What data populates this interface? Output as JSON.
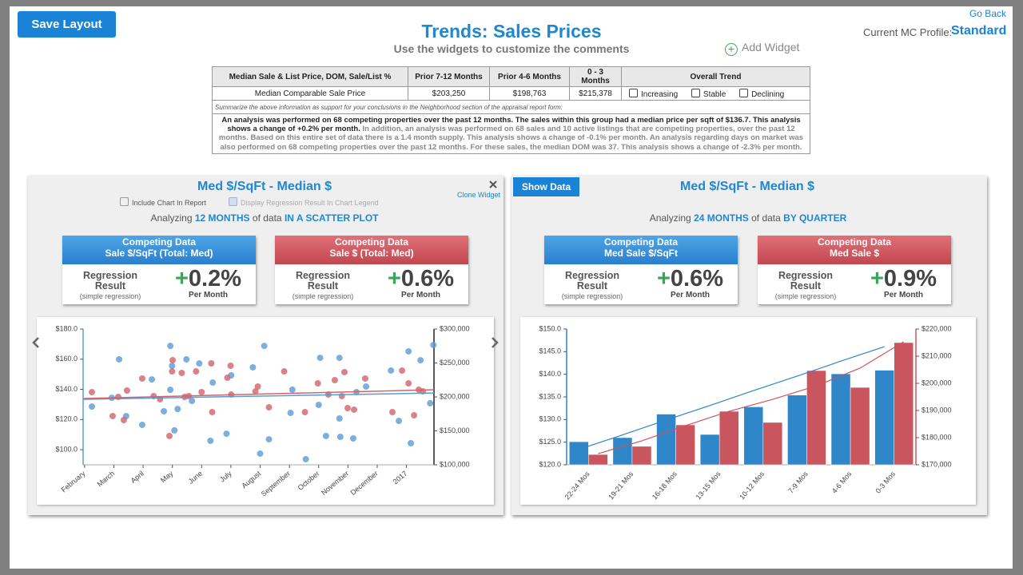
{
  "header": {
    "save_button": "Save Layout",
    "title": "Trends: Sales Prices",
    "subtitle": "Use the widgets to customize the comments",
    "add_widget": "Add Widget",
    "go_back": "Go Back",
    "profile_label": "Current MC Profile:",
    "profile_value": "Standard"
  },
  "table": {
    "headers": [
      "Median Sale & List Price, DOM, Sale/List %",
      "Prior 7-12 Months",
      "Prior 4-6 Months",
      "0 - 3 Months",
      "Overall Trend"
    ],
    "row": [
      "Median Comparable Sale Price",
      "$203,250",
      "$198,763",
      "$215,378"
    ],
    "trend_options": [
      "Increasing",
      "Stable",
      "Declining"
    ],
    "note": "Summarize the above information as support for your conclusions in the Neighborhood section of the appraisal report form:",
    "summary_bold": "An analysis was performed on 68 competing properties over the past 12 months. The sales within this group had a median price per sqft of $136.7. This analysis shows a change of +0.2% per month.",
    "summary_rest": "In addition, an analysis was performed on 68 sales and 10 active listings that are competing properties, over the past 12 months. Based on this entire set of data there is a 1.4 month supply. This analysis shows a change of -0.1% per month. An analysis regarding days on market was also performed on 68 competing properties over the past 12 months. For these sales, the median DOM was 37. This analysis shows a change of -2.3% per month."
  },
  "widgets": [
    {
      "title": "Med $/SqFt - Median $",
      "clone": "Clone Widget",
      "options": [
        "Include Chart In Report",
        "Display Regression Result In Chart Legend"
      ],
      "analyzing": [
        "Analyzing",
        "12 MONTHS",
        "of data",
        "IN A SCATTER PLOT"
      ],
      "cards": [
        {
          "header": [
            "Competing Data",
            "Sale $/SqFt (Total: Med)"
          ],
          "label": "Regression Result",
          "sublabel": "(simple regression)",
          "sign": "+",
          "value": "0.2%",
          "unit": "Per Month"
        },
        {
          "header": [
            "Competing Data",
            "Sale $ (Total: Med)"
          ],
          "label": "Regression Result",
          "sublabel": "(simple regression)",
          "sign": "+",
          "value": "0.6%",
          "unit": "Per Month"
        }
      ]
    },
    {
      "button": "Show Data",
      "title": "Med $/SqFt - Median $",
      "analyzing": [
        "Analyzing",
        "24 MONTHS",
        "of data",
        "BY QUARTER"
      ],
      "cards": [
        {
          "header": [
            "Competing Data",
            "Med Sale $/SqFt"
          ],
          "label": "Regression Result",
          "sublabel": "(simple regression)",
          "sign": "+",
          "value": "0.6%",
          "unit": "Per Month"
        },
        {
          "header": [
            "Competing Data",
            "Med Sale $"
          ],
          "label": "Regression Result",
          "sublabel": "(simple regression)",
          "sign": "+",
          "value": "0.9%",
          "unit": "Per Month"
        }
      ]
    }
  ],
  "chart_data": [
    {
      "type": "scatter",
      "xlim": [
        0.95,
        12.94
      ],
      "xticks": [
        {
          "value": 1,
          "label": "February"
        },
        {
          "value": 2,
          "label": "March"
        },
        {
          "value": 3,
          "label": "April"
        },
        {
          "value": 4,
          "label": "May"
        },
        {
          "value": 5,
          "label": "June"
        },
        {
          "value": 6,
          "label": "July"
        },
        {
          "value": 7,
          "label": "August"
        },
        {
          "value": 8,
          "label": "September"
        },
        {
          "value": 9,
          "label": "October"
        },
        {
          "value": 10,
          "label": "November"
        },
        {
          "value": 11,
          "label": "December"
        },
        {
          "value": 12,
          "label": "2017"
        }
      ],
      "ylim": [
        90,
        180
      ],
      "yticks": [
        {
          "value": 100,
          "label": "$100.0"
        },
        {
          "value": 120,
          "label": "$120.0"
        },
        {
          "value": 140,
          "label": "$140.0"
        },
        {
          "value": 160,
          "label": "$160.0"
        },
        {
          "value": 180,
          "label": "$180.0"
        }
      ],
      "y2lim": [
        100000,
        300000
      ],
      "y2ticks": [
        {
          "value": 100000,
          "label": "$100,000"
        },
        {
          "value": 150000,
          "label": "$150,000"
        },
        {
          "value": 200000,
          "label": "$200,000"
        },
        {
          "value": 250000,
          "label": "$250,000"
        },
        {
          "value": 300000,
          "label": "$300,000"
        }
      ],
      "series": [
        {
          "color": "#5b9bd5",
          "x": [
            1.25,
            2.18,
            1.93,
            2.42,
            2.97,
            3.3,
            3.71,
            3.93,
            3.99,
            3.93,
            4.18,
            4.48,
            4.07,
            4.67,
            4.92,
            5.3,
            5.38,
            6.01,
            5.85,
            6.75,
            7.0,
            7.14,
            7.3,
            8.04,
            8.1,
            8.56,
            9.0,
            9.05,
            9.25,
            9.71,
            9.74,
            9.71,
            10.18,
            10.62,
            11.47,
            11.74,
            12.07,
            12.15,
            12.48,
            12.81,
            12.92,
            10.29
          ],
          "values": [
            128.6,
            159.9,
            134.4,
            122.3,
            116.5,
            146.6,
            125.5,
            168.8,
            155.6,
            139.7,
            127.0,
            159.9,
            112.8,
            132.3,
            157.2,
            105.9,
            144.5,
            149.3,
            110.6,
            154.6,
            97.4,
            168.8,
            106.9,
            124.4,
            139.8,
            93.7,
            129.7,
            160.9,
            109.1,
            160.9,
            108.5,
            120.7,
            107.5,
            141.9,
            152.5,
            119.1,
            165.2,
            104.3,
            159.3,
            130.8,
            169.4,
            138.2
          ],
          "trend": {
            "x": [
              0.95,
              12.94
            ],
            "values": [
              133.4,
              137.6
            ]
          }
        },
        {
          "color": "#d0646c",
          "axis": "y2",
          "x": [
            1.25,
            1.96,
            2.15,
            2.34,
            2.45,
            2.97,
            3.36,
            3.58,
            3.9,
            4.01,
            3.99,
            4.42,
            4.81,
            5.0,
            5.36,
            5.33,
            5.88,
            5.99,
            6.01,
            6.84,
            7.3,
            7.82,
            8.53,
            8.97,
            9.33,
            9.55,
            9.88,
            9.79,
            9.99,
            10.21,
            10.59,
            11.52,
            11.85,
            12.07,
            12.26,
            12.42,
            12.56,
            4.32,
            4.56,
            6.92
          ],
          "values": [
            207000,
            171800,
            200000,
            165900,
            209400,
            227100,
            201200,
            196500,
            142400,
            254100,
            237600,
            200000,
            237600,
            207100,
            177600,
            249400,
            228200,
            245900,
            203500,
            208200,
            184700,
            237600,
            177600,
            220000,
            203500,
            224700,
            236500,
            201200,
            183500,
            181200,
            227100,
            177600,
            238800,
            220000,
            172900,
            210600,
            208200,
            235300,
            201200,
            215300
          ],
          "trend": {
            "x": [
              0.95,
              12.94
            ],
            "values": [
              197600,
              210600
            ]
          }
        }
      ]
    },
    {
      "type": "bar",
      "categories": [
        "22-24 Mos",
        "19-21 Mos",
        "16-18 Mos",
        "13-15 Mos",
        "10-12 Mos",
        "7-9 Mos",
        "4-6 Mos",
        "0-3 Mos"
      ],
      "ylim": [
        120,
        150
      ],
      "yticks": [
        {
          "value": 120,
          "label": "$120.0"
        },
        {
          "value": 125,
          "label": "$125.0"
        },
        {
          "value": 130,
          "label": "$130.0"
        },
        {
          "value": 135,
          "label": "$135.0"
        },
        {
          "value": 140,
          "label": "$140.0"
        },
        {
          "value": 145,
          "label": "$145.0"
        },
        {
          "value": 150,
          "label": "$150.0"
        }
      ],
      "y2lim": [
        170000,
        220000
      ],
      "y2ticks": [
        {
          "value": 170000,
          "label": "$170,000"
        },
        {
          "value": 180000,
          "label": "$180,000"
        },
        {
          "value": 190000,
          "label": "$190,000"
        },
        {
          "value": 200000,
          "label": "$200,000"
        },
        {
          "value": 210000,
          "label": "$210,000"
        },
        {
          "value": 220000,
          "label": "$220,000"
        }
      ],
      "series": [
        {
          "color": "#2f86c8",
          "values": [
            125.1,
            126.0,
            131.2,
            126.7,
            132.8,
            135.4,
            140.1,
            140.9
          ],
          "trend": {
            "values": [
              123.4,
              126.6,
              129.9,
              133.1,
              136.4,
              139.6,
              142.9,
              146.1
            ]
          }
        },
        {
          "color": "#c9555e",
          "axis": "y2",
          "values": [
            173800,
            176800,
            184700,
            189700,
            185600,
            204700,
            198500,
            215000
          ],
          "trend": {
            "values": [
              174100,
              178800,
              184400,
              189700,
              194100,
              199100,
              205600,
              215300
            ]
          }
        }
      ]
    }
  ]
}
